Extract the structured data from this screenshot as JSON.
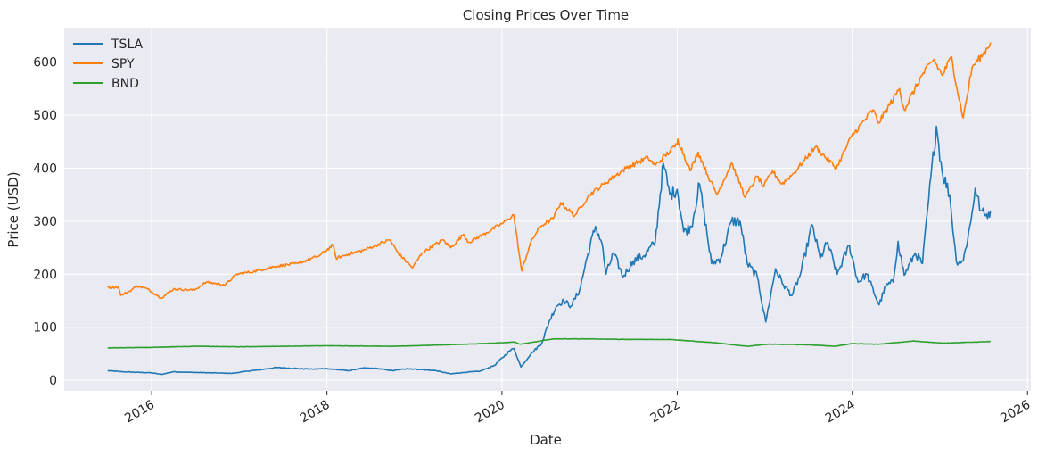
{
  "chart_data": {
    "type": "line",
    "title": "Closing Prices Over Time",
    "xlabel": "Date",
    "ylabel": "Price (USD)",
    "xlim": [
      "2015-01-01",
      "2026-01-15"
    ],
    "ylim": [
      -20,
      665
    ],
    "x_ticks": [
      "2016",
      "2018",
      "2020",
      "2022",
      "2024",
      "2026"
    ],
    "y_ticks": [
      0,
      100,
      200,
      300,
      400,
      500,
      600
    ],
    "grid": true,
    "legend_position": "top-left",
    "series": [
      {
        "name": "TSLA",
        "color": "#1f77b4",
        "points": [
          [
            "2015-07-01",
            18
          ],
          [
            "2015-09-01",
            16
          ],
          [
            "2015-11-01",
            15
          ],
          [
            "2016-01-01",
            14
          ],
          [
            "2016-02-10",
            11
          ],
          [
            "2016-04-01",
            16
          ],
          [
            "2016-06-01",
            15
          ],
          [
            "2016-09-01",
            14
          ],
          [
            "2016-12-01",
            13
          ],
          [
            "2017-02-01",
            17
          ],
          [
            "2017-04-01",
            20
          ],
          [
            "2017-06-01",
            24
          ],
          [
            "2017-09-01",
            22
          ],
          [
            "2017-11-01",
            21
          ],
          [
            "2018-01-01",
            22
          ],
          [
            "2018-04-01",
            18
          ],
          [
            "2018-06-01",
            23
          ],
          [
            "2018-08-01",
            22
          ],
          [
            "2018-10-01",
            18
          ],
          [
            "2018-12-01",
            22
          ],
          [
            "2019-02-01",
            20
          ],
          [
            "2019-04-01",
            18
          ],
          [
            "2019-06-01",
            12
          ],
          [
            "2019-08-01",
            15
          ],
          [
            "2019-10-01",
            17
          ],
          [
            "2019-12-01",
            28
          ],
          [
            "2020-02-01",
            55
          ],
          [
            "2020-02-20",
            60
          ],
          [
            "2020-03-20",
            25
          ],
          [
            "2020-05-01",
            50
          ],
          [
            "2020-06-15",
            70
          ],
          [
            "2020-07-15",
            110
          ],
          [
            "2020-08-15",
            140
          ],
          [
            "2020-09-15",
            150
          ],
          [
            "2020-10-15",
            140
          ],
          [
            "2020-11-20",
            170
          ],
          [
            "2020-12-20",
            230
          ],
          [
            "2021-01-25",
            290
          ],
          [
            "2021-02-20",
            260
          ],
          [
            "2021-03-10",
            200
          ],
          [
            "2021-04-10",
            240
          ],
          [
            "2021-05-20",
            195
          ],
          [
            "2021-07-01",
            225
          ],
          [
            "2021-08-15",
            235
          ],
          [
            "2021-10-01",
            260
          ],
          [
            "2021-11-04",
            409
          ],
          [
            "2021-12-01",
            350
          ],
          [
            "2022-01-01",
            360
          ],
          [
            "2022-01-28",
            280
          ],
          [
            "2022-03-01",
            290
          ],
          [
            "2022-04-04",
            370
          ],
          [
            "2022-05-24",
            220
          ],
          [
            "2022-07-01",
            230
          ],
          [
            "2022-08-15",
            300
          ],
          [
            "2022-09-20",
            300
          ],
          [
            "2022-10-20",
            220
          ],
          [
            "2022-12-01",
            195
          ],
          [
            "2023-01-05",
            110
          ],
          [
            "2023-02-15",
            210
          ],
          [
            "2023-03-20",
            180
          ],
          [
            "2023-04-25",
            160
          ],
          [
            "2023-05-30",
            200
          ],
          [
            "2023-07-18",
            293
          ],
          [
            "2023-08-20",
            230
          ],
          [
            "2023-09-20",
            260
          ],
          [
            "2023-10-30",
            200
          ],
          [
            "2023-12-20",
            255
          ],
          [
            "2024-01-25",
            185
          ],
          [
            "2024-03-01",
            200
          ],
          [
            "2024-04-22",
            142
          ],
          [
            "2024-05-20",
            178
          ],
          [
            "2024-06-20",
            185
          ],
          [
            "2024-07-10",
            262
          ],
          [
            "2024-08-05",
            198
          ],
          [
            "2024-09-20",
            240
          ],
          [
            "2024-10-20",
            220
          ],
          [
            "2024-11-10",
            320
          ],
          [
            "2024-12-17",
            479
          ],
          [
            "2025-01-10",
            394
          ],
          [
            "2025-02-10",
            350
          ],
          [
            "2025-03-10",
            225
          ],
          [
            "2025-04-08",
            225
          ],
          [
            "2025-05-10",
            300
          ],
          [
            "2025-05-28",
            362
          ],
          [
            "2025-06-20",
            320
          ],
          [
            "2025-07-10",
            310
          ],
          [
            "2025-07-31",
            320
          ]
        ]
      },
      {
        "name": "SPY",
        "color": "#ff7f0e",
        "points": [
          [
            "2015-07-01",
            175
          ],
          [
            "2015-08-15",
            176
          ],
          [
            "2015-08-25",
            160
          ],
          [
            "2015-10-01",
            168
          ],
          [
            "2015-11-01",
            178
          ],
          [
            "2015-12-15",
            172
          ],
          [
            "2016-02-10",
            155
          ],
          [
            "2016-04-01",
            172
          ],
          [
            "2016-06-27",
            170
          ],
          [
            "2016-08-15",
            185
          ],
          [
            "2016-11-03",
            180
          ],
          [
            "2016-12-20",
            200
          ],
          [
            "2017-03-01",
            205
          ],
          [
            "2017-06-01",
            215
          ],
          [
            "2017-09-01",
            220
          ],
          [
            "2017-12-01",
            235
          ],
          [
            "2018-01-26",
            255
          ],
          [
            "2018-02-08",
            230
          ],
          [
            "2018-04-01",
            238
          ],
          [
            "2018-06-01",
            245
          ],
          [
            "2018-09-20",
            265
          ],
          [
            "2018-10-25",
            240
          ],
          [
            "2018-12-24",
            212
          ],
          [
            "2019-02-01",
            240
          ],
          [
            "2019-04-30",
            265
          ],
          [
            "2019-06-01",
            250
          ],
          [
            "2019-07-25",
            275
          ],
          [
            "2019-08-15",
            260
          ],
          [
            "2019-10-15",
            275
          ],
          [
            "2019-12-31",
            295
          ],
          [
            "2020-02-19",
            312
          ],
          [
            "2020-03-23",
            206
          ],
          [
            "2020-04-30",
            260
          ],
          [
            "2020-06-08",
            290
          ],
          [
            "2020-08-01",
            305
          ],
          [
            "2020-09-02",
            335
          ],
          [
            "2020-10-30",
            310
          ],
          [
            "2020-12-31",
            350
          ],
          [
            "2021-03-01",
            370
          ],
          [
            "2021-06-01",
            400
          ],
          [
            "2021-09-01",
            420
          ],
          [
            "2021-10-01",
            405
          ],
          [
            "2021-12-31",
            445
          ],
          [
            "2022-01-03",
            455
          ],
          [
            "2022-02-24",
            395
          ],
          [
            "2022-03-29",
            430
          ],
          [
            "2022-05-20",
            375
          ],
          [
            "2022-06-16",
            350
          ],
          [
            "2022-08-16",
            410
          ],
          [
            "2022-10-12",
            345
          ],
          [
            "2022-11-30",
            385
          ],
          [
            "2022-12-28",
            365
          ],
          [
            "2023-02-02",
            395
          ],
          [
            "2023-03-13",
            370
          ],
          [
            "2023-05-01",
            390
          ],
          [
            "2023-07-31",
            440
          ],
          [
            "2023-10-27",
            400
          ],
          [
            "2023-12-29",
            460
          ],
          [
            "2024-03-28",
            510
          ],
          [
            "2024-04-19",
            485
          ],
          [
            "2024-07-16",
            550
          ],
          [
            "2024-08-05",
            510
          ],
          [
            "2024-10-18",
            575
          ],
          [
            "2024-12-06",
            605
          ],
          [
            "2025-01-10",
            575
          ],
          [
            "2025-02-19",
            610
          ],
          [
            "2025-03-13",
            550
          ],
          [
            "2025-04-08",
            495
          ],
          [
            "2025-05-15",
            590
          ],
          [
            "2025-06-30",
            615
          ],
          [
            "2025-07-31",
            637
          ]
        ]
      },
      {
        "name": "BND",
        "color": "#2ca02c",
        "points": [
          [
            "2015-07-01",
            61
          ],
          [
            "2016-01-01",
            62
          ],
          [
            "2016-07-01",
            64
          ],
          [
            "2017-01-01",
            63
          ],
          [
            "2017-07-01",
            64
          ],
          [
            "2018-01-01",
            65
          ],
          [
            "2018-10-01",
            64
          ],
          [
            "2019-06-01",
            67
          ],
          [
            "2019-12-01",
            70
          ],
          [
            "2020-02-20",
            72
          ],
          [
            "2020-03-18",
            68
          ],
          [
            "2020-08-01",
            78
          ],
          [
            "2021-01-01",
            78
          ],
          [
            "2021-06-01",
            77
          ],
          [
            "2021-12-01",
            77
          ],
          [
            "2022-06-01",
            71
          ],
          [
            "2022-10-20",
            64
          ],
          [
            "2023-01-15",
            68
          ],
          [
            "2023-07-01",
            67
          ],
          [
            "2023-10-20",
            64
          ],
          [
            "2023-12-29",
            69
          ],
          [
            "2024-04-20",
            68
          ],
          [
            "2024-09-15",
            74
          ],
          [
            "2025-01-10",
            70
          ],
          [
            "2025-07-31",
            73
          ]
        ]
      }
    ]
  }
}
